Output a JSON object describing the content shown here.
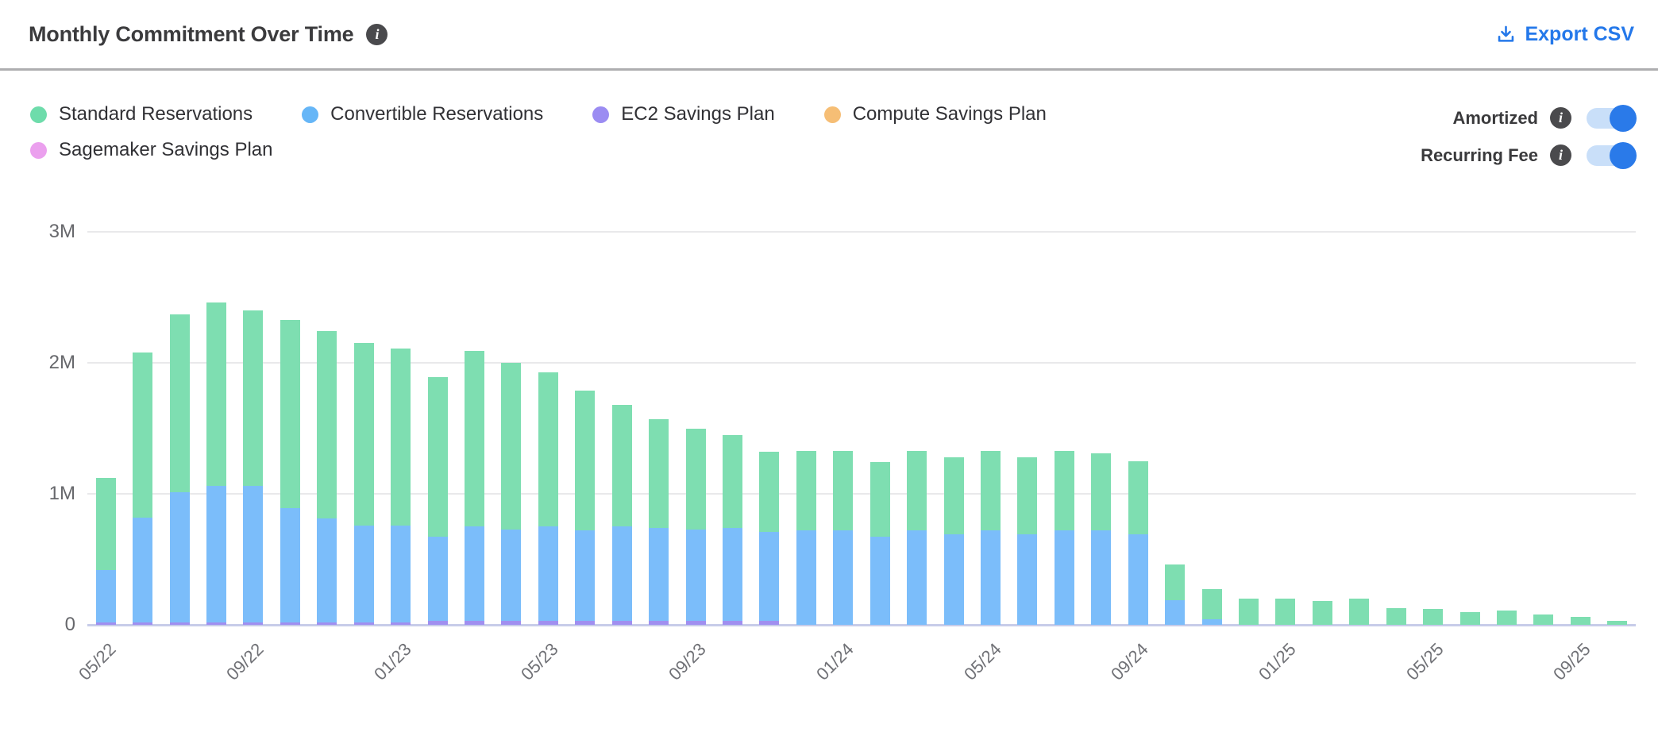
{
  "header": {
    "title": "Monthly Commitment Over Time",
    "export_label": "Export CSV"
  },
  "icons": {
    "info_glyph": "i",
    "download_icon": "download-arrow-into-tray"
  },
  "colors": {
    "accent_blue": "#2478ea",
    "toggle_track": "#c9dff9",
    "toggle_knob": "#2a7ae9",
    "info_badge": "#4a4a4d",
    "gridline": "#e9e9eb",
    "axis_baseline": "#c7cce9"
  },
  "legend": {
    "rows": [
      [
        {
          "label": "Standard Reservations",
          "color": "#6edcab"
        },
        {
          "label": "Convertible Reservations",
          "color": "#66b6f7"
        },
        {
          "label": "EC2 Savings Plan",
          "color": "#9b8cf2"
        },
        {
          "label": "Compute Savings Plan",
          "color": "#f6be75"
        }
      ],
      [
        {
          "label": "Sagemaker Savings Plan",
          "color": "#eba0ee"
        }
      ]
    ]
  },
  "toggles": [
    {
      "label": "Amortized",
      "on": true
    },
    {
      "label": "Recurring Fee",
      "on": true
    }
  ],
  "chart_data": {
    "type": "bar",
    "stacked": true,
    "title": "Monthly Commitment Over Time",
    "ylabel": "",
    "xlabel": "",
    "ylim": [
      0,
      3
    ],
    "unit": "M (USD)",
    "grid": true,
    "yticks": [
      "0",
      "1M",
      "2M",
      "3M"
    ],
    "categories": [
      "05/22",
      "06/22",
      "07/22",
      "08/22",
      "09/22",
      "10/22",
      "11/22",
      "12/22",
      "01/23",
      "02/23",
      "03/23",
      "04/23",
      "05/23",
      "06/23",
      "07/23",
      "08/23",
      "09/23",
      "10/23",
      "11/23",
      "12/23",
      "01/24",
      "02/24",
      "03/24",
      "04/24",
      "05/24",
      "06/24",
      "07/24",
      "08/24",
      "09/24",
      "10/24",
      "11/24",
      "12/24",
      "01/25",
      "02/25",
      "03/25",
      "04/25",
      "05/25",
      "06/25",
      "07/25",
      "08/25",
      "09/25",
      "10/25"
    ],
    "x_ticks": [
      {
        "index": 0,
        "label": "05/22"
      },
      {
        "index": 4,
        "label": "09/22"
      },
      {
        "index": 8,
        "label": "01/23"
      },
      {
        "index": 12,
        "label": "05/23"
      },
      {
        "index": 16,
        "label": "09/23"
      },
      {
        "index": 20,
        "label": "01/24"
      },
      {
        "index": 24,
        "label": "05/24"
      },
      {
        "index": 28,
        "label": "09/24"
      },
      {
        "index": 32,
        "label": "01/25"
      },
      {
        "index": 36,
        "label": "05/25"
      },
      {
        "index": 40,
        "label": "09/25"
      }
    ],
    "series": [
      {
        "name": "EC2 Savings Plan",
        "color": "#a08ff0",
        "values": [
          0.02,
          0.02,
          0.02,
          0.02,
          0.02,
          0.02,
          0.02,
          0.02,
          0.02,
          0.03,
          0.03,
          0.03,
          0.03,
          0.03,
          0.03,
          0.03,
          0.03,
          0.03,
          0.03,
          0,
          0,
          0,
          0,
          0,
          0,
          0,
          0,
          0,
          0,
          0,
          0,
          0,
          0,
          0,
          0,
          0,
          0,
          0,
          0,
          0,
          0,
          0
        ]
      },
      {
        "name": "Convertible Reservations",
        "color": "#7bbdfa",
        "values": [
          0.4,
          0.8,
          0.99,
          1.04,
          1.04,
          0.87,
          0.79,
          0.74,
          0.74,
          0.64,
          0.72,
          0.7,
          0.72,
          0.69,
          0.72,
          0.71,
          0.7,
          0.71,
          0.68,
          0.72,
          0.72,
          0.67,
          0.72,
          0.69,
          0.72,
          0.69,
          0.72,
          0.72,
          0.69,
          0.19,
          0.04,
          0,
          0,
          0,
          0,
          0,
          0,
          0,
          0,
          0,
          0,
          0
        ]
      },
      {
        "name": "Standard Reservations",
        "color": "#7edeb1",
        "values": [
          0.7,
          1.26,
          1.36,
          1.4,
          1.34,
          1.44,
          1.43,
          1.39,
          1.35,
          1.22,
          1.34,
          1.27,
          1.18,
          1.07,
          0.93,
          0.83,
          0.77,
          0.71,
          0.61,
          0.61,
          0.61,
          0.57,
          0.61,
          0.59,
          0.61,
          0.59,
          0.61,
          0.59,
          0.56,
          0.27,
          0.23,
          0.2,
          0.2,
          0.18,
          0.2,
          0.13,
          0.12,
          0.1,
          0.11,
          0.08,
          0.06,
          0.03
        ]
      },
      {
        "name": "Compute Savings Plan",
        "color": "#f6be75",
        "values": [
          0,
          0,
          0,
          0,
          0,
          0,
          0,
          0,
          0,
          0,
          0,
          0,
          0,
          0,
          0,
          0,
          0,
          0,
          0,
          0,
          0,
          0,
          0,
          0,
          0,
          0,
          0,
          0,
          0,
          0,
          0,
          0,
          0,
          0,
          0,
          0,
          0,
          0,
          0,
          0,
          0,
          0
        ]
      },
      {
        "name": "Sagemaker Savings Plan",
        "color": "#eba0ee",
        "values": [
          0,
          0,
          0,
          0,
          0,
          0,
          0,
          0,
          0,
          0,
          0,
          0,
          0,
          0,
          0,
          0,
          0,
          0,
          0,
          0,
          0,
          0,
          0,
          0,
          0,
          0,
          0,
          0,
          0,
          0,
          0,
          0,
          0,
          0,
          0,
          0,
          0,
          0,
          0,
          0,
          0,
          0
        ]
      }
    ],
    "legend_position": "top-left"
  }
}
